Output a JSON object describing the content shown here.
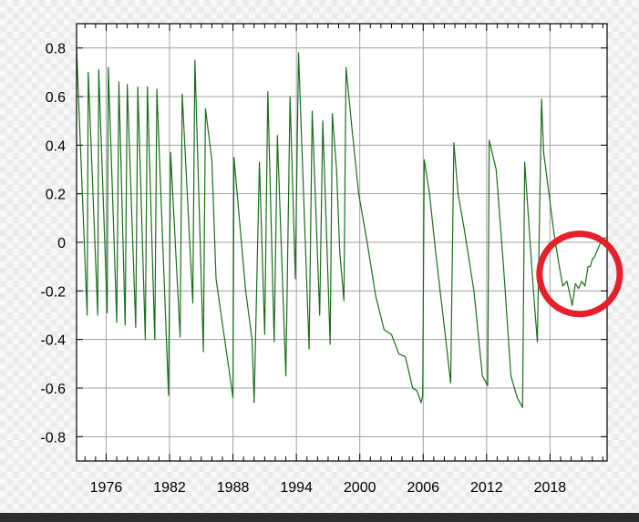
{
  "chart_data": {
    "type": "line",
    "title": "",
    "xlabel": "",
    "ylabel": "",
    "xlim": [
      1973.2,
      2023.4
    ],
    "ylim": [
      -0.9,
      0.9
    ],
    "x_ticks": [
      1976,
      1982,
      1988,
      1994,
      2000,
      2006,
      2012,
      2018
    ],
    "y_ticks": [
      0.8,
      0.6,
      0.4,
      0.2,
      0,
      -0.2,
      -0.4,
      -0.6,
      -0.8
    ],
    "y_tick_labels": [
      "0.8",
      "0.6",
      "0.4",
      "0.2",
      "0",
      "-0.2",
      "-0.4",
      "-0.6",
      "-0.8"
    ],
    "grid": true,
    "line_color": "#1a6e1a",
    "annotation": {
      "shape": "circle",
      "color": "#e5202a",
      "center": [
        2020.8,
        -0.13
      ],
      "radius": 3.8
    },
    "series": [
      {
        "x": [
          1973.2,
          1974.2,
          1974.3,
          1975.2,
          1975.3,
          1976.1,
          1976.2,
          1977.0,
          1977.2,
          1977.8,
          1978.0,
          1978.8,
          1979.0,
          1979.7,
          1979.9,
          1980.6,
          1980.8,
          1981.9,
          1982.1,
          1983.0,
          1983.2,
          1984.2,
          1984.4,
          1985.2,
          1985.4,
          1986.0,
          1986.4,
          1988.0,
          1988.1,
          1989.2,
          1989.8,
          1990.0,
          1990.5,
          1991.0,
          1991.3,
          1991.9,
          1992.2,
          1993.0,
          1993.4,
          1993.9,
          1994.2,
          1995.2,
          1995.5,
          1996.2,
          1996.5,
          1997.2,
          1997.4,
          1997.8,
          1998.1,
          1998.5,
          1998.7,
          1999.3,
          1999.9,
          2000.7,
          2001.5,
          2002.3,
          2003.0,
          2003.7,
          2004.3,
          2005.0,
          2005.4,
          2005.8,
          2005.95,
          2006.1,
          2006.6,
          2007.2,
          2008.0,
          2008.6,
          2008.9,
          2009.3,
          2009.9,
          2010.8,
          2011.6,
          2012.1,
          2012.25,
          2012.9,
          2013.6,
          2014.3,
          2014.9,
          2015.4,
          2015.6,
          2016.4,
          2016.8,
          2017.2,
          2017.4,
          2017.9,
          2018.4,
          2018.8,
          2019.2,
          2019.6,
          2019.8,
          2020.1,
          2020.4,
          2020.7,
          2021.0,
          2021.3,
          2021.6,
          2021.8,
          2022.0,
          2022.2,
          2022.6,
          2022.9,
          2023.3
        ],
        "y": [
          0.8,
          -0.3,
          0.7,
          -0.3,
          0.71,
          -0.29,
          0.72,
          -0.33,
          0.66,
          -0.34,
          0.65,
          -0.35,
          0.64,
          -0.4,
          0.64,
          -0.4,
          0.63,
          -0.63,
          0.37,
          -0.39,
          0.61,
          -0.25,
          0.75,
          -0.45,
          0.55,
          0.34,
          -0.15,
          -0.64,
          0.35,
          -0.2,
          -0.4,
          -0.66,
          0.33,
          -0.38,
          0.62,
          -0.41,
          0.44,
          -0.55,
          0.6,
          -0.15,
          0.78,
          -0.44,
          0.54,
          -0.3,
          0.5,
          -0.42,
          0.53,
          0.3,
          -0.04,
          -0.24,
          0.72,
          0.45,
          0.2,
          0.0,
          -0.22,
          -0.36,
          -0.38,
          -0.46,
          -0.47,
          -0.6,
          -0.61,
          -0.66,
          -0.63,
          0.34,
          0.2,
          -0.05,
          -0.35,
          -0.58,
          0.41,
          0.2,
          0.05,
          -0.2,
          -0.55,
          -0.59,
          0.42,
          0.3,
          -0.1,
          -0.55,
          -0.64,
          -0.68,
          0.33,
          -0.18,
          -0.41,
          0.59,
          0.37,
          0.2,
          0.03,
          -0.08,
          -0.18,
          -0.16,
          -0.2,
          -0.26,
          -0.17,
          -0.19,
          -0.16,
          -0.18,
          -0.1,
          -0.1,
          -0.07,
          -0.06,
          -0.02,
          0.01,
          0.02
        ]
      }
    ]
  }
}
